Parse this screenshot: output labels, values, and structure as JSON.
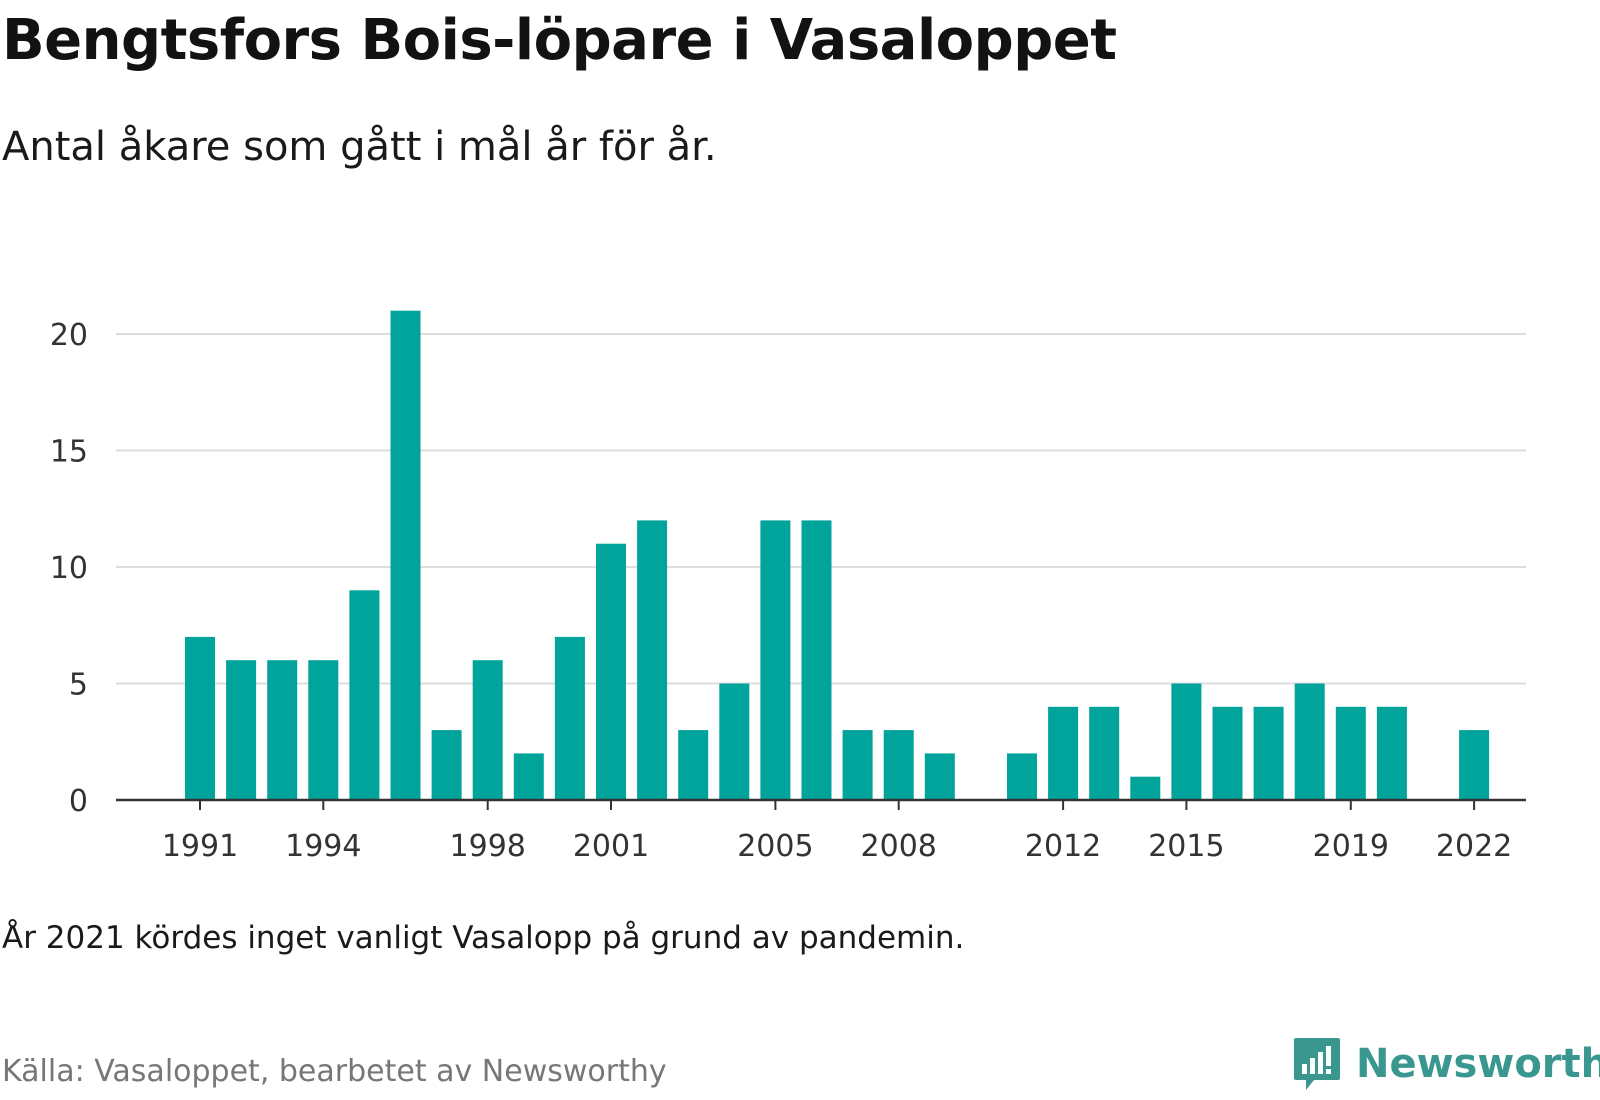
{
  "header": {
    "title": "Bengtsfors Bois-löpare i Vasaloppet",
    "subtitle": "Antal åkare som gått i mål år för år."
  },
  "footer": {
    "note": "År 2021 kördes inget vanligt Vasalopp på grund av pandemin.",
    "source": "Källa: Vasaloppet, bearbetet av Newsworthy",
    "brand": "Newsworthy",
    "brand_icon": "newsworthy-logo-icon",
    "brand_color": "#3a978f"
  },
  "chart_data": {
    "type": "bar",
    "title": "Bengtsfors Bois-löpare i Vasaloppet",
    "subtitle": "Antal åkare som gått i mål år för år.",
    "categories": [
      "1991",
      "1992",
      "1993",
      "1994",
      "1995",
      "1996",
      "1997",
      "1998",
      "1999",
      "2000",
      "2001",
      "2002",
      "2003",
      "2004",
      "2005",
      "2006",
      "2007",
      "2008",
      "2009",
      "2010",
      "2011",
      "2012",
      "2013",
      "2014",
      "2015",
      "2016",
      "2017",
      "2018",
      "2019",
      "2020",
      "2021",
      "2022"
    ],
    "values": [
      7,
      6,
      6,
      6,
      9,
      21,
      3,
      6,
      2,
      7,
      11,
      12,
      3,
      5,
      12,
      12,
      3,
      3,
      2,
      0,
      2,
      4,
      4,
      1,
      5,
      4,
      4,
      5,
      4,
      4,
      0,
      3
    ],
    "x_tick_labels": [
      "1991",
      "1994",
      "1998",
      "2001",
      "2005",
      "2008",
      "2012",
      "2015",
      "2019",
      "2022"
    ],
    "y_ticks": [
      0,
      5,
      10,
      15,
      20
    ],
    "ylim": [
      0,
      21
    ],
    "grid": true,
    "bar_color": "#00a49a",
    "xlabel": "",
    "ylabel": ""
  }
}
